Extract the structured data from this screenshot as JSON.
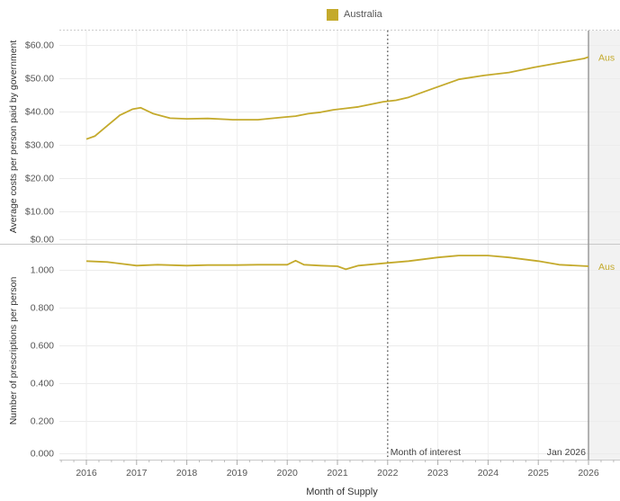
{
  "legend": {
    "label": "Australia",
    "color": "#c4aa2c"
  },
  "chart_data": {
    "type": "line",
    "xlabel": "Month of Supply",
    "x_ticks": [
      "2016",
      "2017",
      "2018",
      "2019",
      "2020",
      "2021",
      "2022",
      "2023",
      "2024",
      "2025",
      "2026"
    ],
    "reference_lines": [
      {
        "label": "Month of interest",
        "x": "2022-01",
        "style": "dotted"
      },
      {
        "label": "Jan 2026",
        "x": "2026-01",
        "style": "solid"
      }
    ],
    "grid": true,
    "panels": [
      {
        "name": "top",
        "ylabel": "Average costs per person paid by government",
        "y_ticks": [
          "$0.00",
          "$10.00",
          "$20.00",
          "$30.00",
          "$40.00",
          "$50.00",
          "$60.00"
        ],
        "ylim": [
          0,
          65
        ],
        "series": [
          {
            "name": "Australia",
            "end_label": "Aus",
            "points": [
              [
                "2016-01",
                33.5
              ],
              [
                "2016-03",
                34.5
              ],
              [
                "2016-06",
                38.0
              ],
              [
                "2016-09",
                41.5
              ],
              [
                "2016-12",
                43.5
              ],
              [
                "2017-02",
                44.0
              ],
              [
                "2017-05",
                42.0
              ],
              [
                "2017-09",
                40.5
              ],
              [
                "2018-01",
                40.3
              ],
              [
                "2018-06",
                40.4
              ],
              [
                "2018-12",
                40.0
              ],
              [
                "2019-06",
                40.0
              ],
              [
                "2019-12",
                40.8
              ],
              [
                "2020-03",
                41.2
              ],
              [
                "2020-06",
                42.0
              ],
              [
                "2020-09",
                42.5
              ],
              [
                "2020-12",
                43.3
              ],
              [
                "2021-06",
                44.3
              ],
              [
                "2021-12",
                46.0
              ],
              [
                "2022-03",
                46.5
              ],
              [
                "2022-06",
                47.5
              ],
              [
                "2022-12",
                50.5
              ],
              [
                "2023-06",
                53.5
              ],
              [
                "2023-12",
                54.8
              ],
              [
                "2024-06",
                55.8
              ],
              [
                "2024-12",
                57.5
              ],
              [
                "2025-06",
                59.0
              ],
              [
                "2025-12",
                60.5
              ],
              [
                "2026-01",
                61.0
              ]
            ]
          }
        ]
      },
      {
        "name": "bottom",
        "ylabel": "Number of prescriptions per person",
        "y_ticks": [
          "0.000",
          "0.200",
          "0.400",
          "0.600",
          "0.800",
          "1.000"
        ],
        "ylim": [
          0,
          1.12
        ],
        "series": [
          {
            "name": "Australia",
            "end_label": "Aus",
            "points": [
              [
                "2016-01",
                1.05
              ],
              [
                "2016-06",
                1.045
              ],
              [
                "2017-01",
                1.025
              ],
              [
                "2017-06",
                1.03
              ],
              [
                "2018-01",
                1.025
              ],
              [
                "2018-06",
                1.028
              ],
              [
                "2019-01",
                1.028
              ],
              [
                "2019-06",
                1.03
              ],
              [
                "2020-01",
                1.03
              ],
              [
                "2020-03",
                1.052
              ],
              [
                "2020-05",
                1.03
              ],
              [
                "2020-09",
                1.025
              ],
              [
                "2021-01",
                1.022
              ],
              [
                "2021-03",
                1.005
              ],
              [
                "2021-06",
                1.025
              ],
              [
                "2022-01",
                1.04
              ],
              [
                "2022-06",
                1.05
              ],
              [
                "2023-01",
                1.07
              ],
              [
                "2023-06",
                1.08
              ],
              [
                "2024-01",
                1.08
              ],
              [
                "2024-06",
                1.07
              ],
              [
                "2025-01",
                1.05
              ],
              [
                "2025-06",
                1.03
              ],
              [
                "2026-01",
                1.022
              ]
            ]
          }
        ]
      }
    ]
  }
}
